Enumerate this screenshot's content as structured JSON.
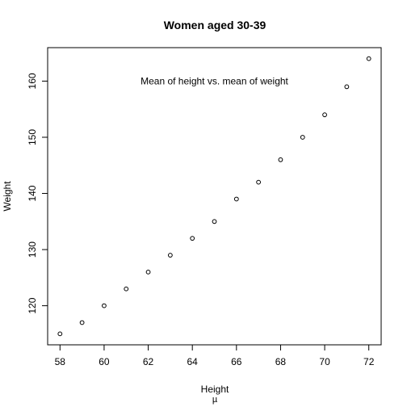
{
  "chart_data": {
    "type": "scatter",
    "title": "Women aged 30-39",
    "xlabel": "Height",
    "xsublabel": "µ",
    "ylabel": "Weight",
    "annotation": {
      "text": "Mean of height vs. mean of weight",
      "x": 65,
      "y": 160
    },
    "xlim": [
      57.44,
      72.56
    ],
    "ylim": [
      113.04,
      165.96
    ],
    "xticks": [
      58,
      60,
      62,
      64,
      66,
      68,
      70,
      72
    ],
    "yticks": [
      120,
      130,
      140,
      150,
      160
    ],
    "grid": false,
    "points": [
      {
        "x": 58,
        "y": 115
      },
      {
        "x": 59,
        "y": 117
      },
      {
        "x": 60,
        "y": 120
      },
      {
        "x": 61,
        "y": 123
      },
      {
        "x": 62,
        "y": 126
      },
      {
        "x": 63,
        "y": 129
      },
      {
        "x": 64,
        "y": 132
      },
      {
        "x": 65,
        "y": 135
      },
      {
        "x": 66,
        "y": 139
      },
      {
        "x": 67,
        "y": 142
      },
      {
        "x": 68,
        "y": 146
      },
      {
        "x": 69,
        "y": 150
      },
      {
        "x": 70,
        "y": 154
      },
      {
        "x": 71,
        "y": 159
      },
      {
        "x": 72,
        "y": 164
      }
    ],
    "marker_color": "#000000"
  }
}
